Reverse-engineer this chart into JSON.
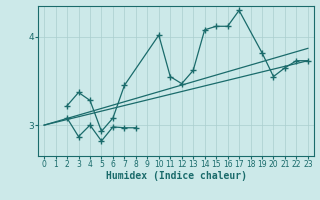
{
  "xlabel": "Humidex (Indice chaleur)",
  "background_color": "#cce9e9",
  "line_color": "#1a6b6b",
  "grid_color": "#aacece",
  "xlim": [
    -0.5,
    23.5
  ],
  "ylim": [
    2.65,
    4.35
  ],
  "yticks": [
    3,
    4
  ],
  "xticks": [
    0,
    1,
    2,
    3,
    4,
    5,
    6,
    7,
    8,
    9,
    10,
    11,
    12,
    13,
    14,
    15,
    16,
    17,
    18,
    19,
    20,
    21,
    22,
    23
  ],
  "line_upper_x": [
    2,
    3,
    4,
    5,
    6,
    7,
    10,
    11,
    12,
    13,
    14,
    15,
    16,
    17,
    19,
    20,
    21,
    22,
    23
  ],
  "line_upper_y": [
    3.22,
    3.37,
    3.28,
    2.93,
    3.08,
    3.45,
    4.02,
    3.55,
    3.47,
    3.62,
    4.08,
    4.12,
    4.12,
    4.3,
    3.82,
    3.55,
    3.65,
    3.73,
    3.73
  ],
  "line_lower_x": [
    2,
    3,
    4,
    5,
    6,
    7,
    8
  ],
  "line_lower_y": [
    3.08,
    2.87,
    3.0,
    2.82,
    2.98,
    2.97,
    2.97
  ],
  "line_trend1_x": [
    0,
    23
  ],
  "line_trend1_y": [
    3.0,
    3.73
  ],
  "line_trend2_x": [
    0,
    23
  ],
  "line_trend2_y": [
    3.0,
    3.73
  ],
  "marker": "+",
  "markersize": 4,
  "linewidth": 0.9
}
